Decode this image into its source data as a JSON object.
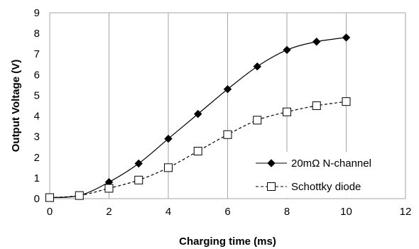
{
  "chart_data": {
    "type": "line",
    "title": "",
    "xlabel": "Charging time (ms)",
    "ylabel": "Output Voltage (V)",
    "xlim": [
      0,
      12
    ],
    "ylim": [
      0,
      9
    ],
    "xticks": [
      "0",
      "2",
      "4",
      "6",
      "8",
      "10",
      "12"
    ],
    "yticks": [
      "0",
      "1",
      "2",
      "3",
      "4",
      "5",
      "6",
      "7",
      "8",
      "9"
    ],
    "grid": "vertical",
    "legend_position": "bottom-right",
    "series": [
      {
        "name": "20mΩ N-channel",
        "marker": "filled-diamond",
        "line": "solid",
        "color": "#000000",
        "x": [
          0,
          1,
          2,
          3,
          4,
          5,
          6,
          7,
          8,
          9,
          10
        ],
        "y": [
          0.05,
          0.15,
          0.8,
          1.7,
          2.9,
          4.1,
          5.3,
          6.4,
          7.2,
          7.6,
          7.8
        ]
      },
      {
        "name": "Schottky diode",
        "marker": "open-square",
        "line": "dashed",
        "color": "#000000",
        "x": [
          0,
          1,
          2,
          3,
          4,
          5,
          6,
          7,
          8,
          9,
          10
        ],
        "y": [
          0.05,
          0.15,
          0.5,
          0.9,
          1.5,
          2.3,
          3.1,
          3.8,
          4.2,
          4.5,
          4.7
        ]
      }
    ]
  }
}
